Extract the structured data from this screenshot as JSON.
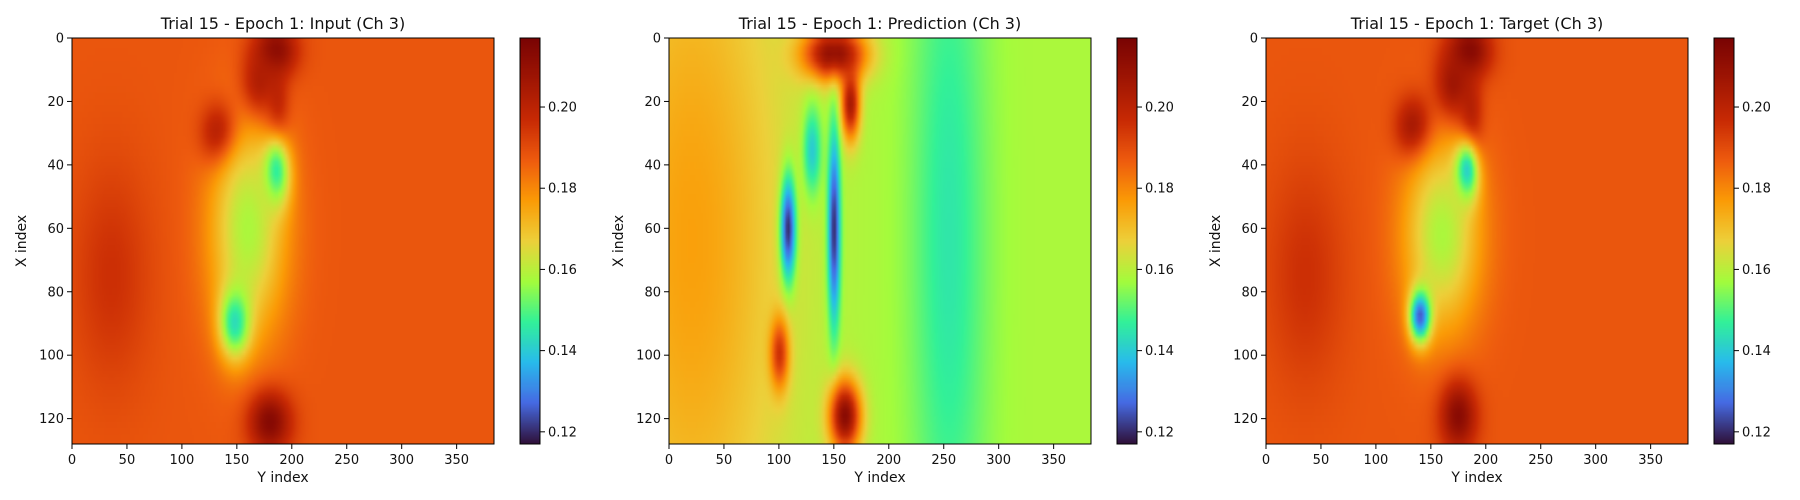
{
  "chart_data": [
    {
      "type": "heatmap",
      "title": "Trial 15 - Epoch 1: Input (Ch 3)",
      "xlabel": "Y index",
      "ylabel": "X index",
      "xlim": [
        0,
        384
      ],
      "ylim": [
        128,
        0
      ],
      "xticks": [
        0,
        50,
        100,
        150,
        200,
        250,
        300,
        350
      ],
      "yticks": [
        0,
        20,
        40,
        60,
        80,
        100,
        120
      ],
      "colormap": "turbo",
      "colorbar": {
        "vmin": 0.117,
        "vmax": 0.217,
        "ticks": [
          "0.12",
          "0.14",
          "0.16",
          "0.18",
          "0.20"
        ]
      },
      "background_level": 0.188,
      "features": [
        {
          "x": 185,
          "y": 3,
          "sx": 14,
          "sy": 6,
          "value": 0.215
        },
        {
          "x": 170,
          "y": 15,
          "sx": 12,
          "sy": 8,
          "value": 0.212
        },
        {
          "x": 135,
          "y": 30,
          "sx": 12,
          "sy": 7,
          "value": 0.215
        },
        {
          "x": 185,
          "y": 25,
          "sx": 8,
          "sy": 10,
          "value": 0.21
        },
        {
          "x": 185,
          "y": 42,
          "sx": 9,
          "sy": 8,
          "value": 0.137
        },
        {
          "x": 160,
          "y": 60,
          "sx": 25,
          "sy": 25,
          "value": 0.158
        },
        {
          "x": 148,
          "y": 90,
          "sx": 10,
          "sy": 8,
          "value": 0.143
        },
        {
          "x": 180,
          "y": 122,
          "sx": 14,
          "sy": 7,
          "value": 0.214
        },
        {
          "x": 35,
          "y": 75,
          "sx": 25,
          "sy": 25,
          "value": 0.196
        }
      ]
    },
    {
      "type": "heatmap",
      "title": "Trial 15 - Epoch 1: Prediction (Ch 3)",
      "xlabel": "Y index",
      "ylabel": "X index",
      "xlim": [
        0,
        384
      ],
      "ylim": [
        128,
        0
      ],
      "xticks": [
        0,
        50,
        100,
        150,
        200,
        250,
        300,
        350
      ],
      "yticks": [
        0,
        20,
        40,
        60,
        80,
        100,
        120
      ],
      "colormap": "turbo",
      "colorbar": {
        "vmin": 0.117,
        "vmax": 0.217,
        "ticks": [
          "0.12",
          "0.14",
          "0.16",
          "0.18",
          "0.20"
        ]
      },
      "background_level": 0.158,
      "features": [
        {
          "x": 20,
          "y": 64,
          "sx": 60,
          "sy": 90,
          "value": 0.176
        },
        {
          "x": 255,
          "y": 64,
          "sx": 25,
          "sy": 90,
          "value": 0.145
        },
        {
          "x": 150,
          "y": 4,
          "sx": 20,
          "sy": 6,
          "value": 0.213
        },
        {
          "x": 165,
          "y": 20,
          "sx": 6,
          "sy": 8,
          "value": 0.205
        },
        {
          "x": 108,
          "y": 60,
          "sx": 5,
          "sy": 12,
          "value": 0.12
        },
        {
          "x": 150,
          "y": 60,
          "sx": 4,
          "sy": 22,
          "value": 0.12
        },
        {
          "x": 130,
          "y": 35,
          "sx": 6,
          "sy": 10,
          "value": 0.14
        },
        {
          "x": 100,
          "y": 100,
          "sx": 6,
          "sy": 8,
          "value": 0.196
        },
        {
          "x": 160,
          "y": 120,
          "sx": 10,
          "sy": 8,
          "value": 0.213
        }
      ]
    },
    {
      "type": "heatmap",
      "title": "Trial 15 - Epoch 1: Target (Ch 3)",
      "xlabel": "Y index",
      "ylabel": "X index",
      "xlim": [
        0,
        384
      ],
      "ylim": [
        128,
        0
      ],
      "xticks": [
        0,
        50,
        100,
        150,
        200,
        250,
        300,
        350
      ],
      "yticks": [
        0,
        20,
        40,
        60,
        80,
        100,
        120
      ],
      "colormap": "turbo",
      "colorbar": {
        "vmin": 0.117,
        "vmax": 0.217,
        "ticks": [
          "0.12",
          "0.14",
          "0.16",
          "0.18",
          "0.20"
        ]
      },
      "background_level": 0.188,
      "features": [
        {
          "x": 185,
          "y": 3,
          "sx": 14,
          "sy": 6,
          "value": 0.215
        },
        {
          "x": 170,
          "y": 15,
          "sx": 12,
          "sy": 8,
          "value": 0.212
        },
        {
          "x": 135,
          "y": 28,
          "sx": 12,
          "sy": 7,
          "value": 0.214
        },
        {
          "x": 185,
          "y": 28,
          "sx": 8,
          "sy": 10,
          "value": 0.211
        },
        {
          "x": 182,
          "y": 42,
          "sx": 8,
          "sy": 7,
          "value": 0.128
        },
        {
          "x": 160,
          "y": 62,
          "sx": 25,
          "sy": 22,
          "value": 0.158
        },
        {
          "x": 140,
          "y": 88,
          "sx": 7,
          "sy": 6,
          "value": 0.125
        },
        {
          "x": 175,
          "y": 120,
          "sx": 12,
          "sy": 8,
          "value": 0.213
        },
        {
          "x": 35,
          "y": 75,
          "sx": 25,
          "sy": 25,
          "value": 0.196
        }
      ]
    }
  ]
}
